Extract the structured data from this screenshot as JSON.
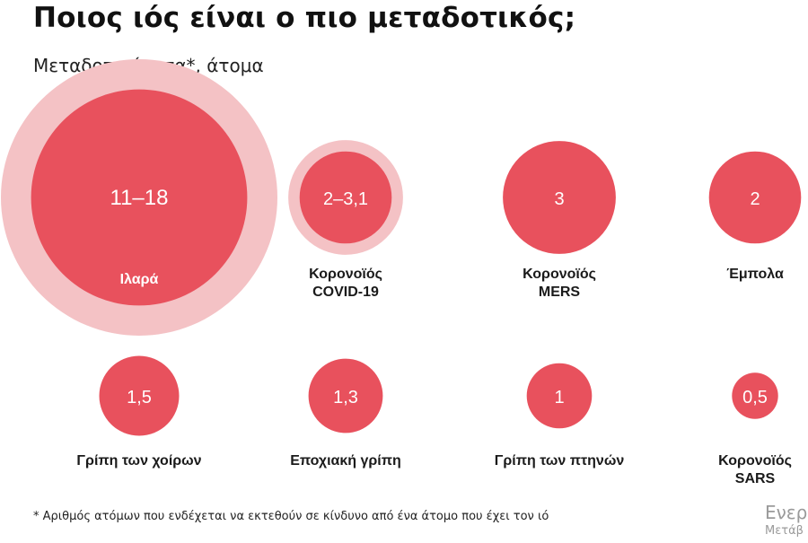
{
  "title": "Ποιος ιός είναι ο πιο μεταδοτικός;",
  "subtitle": "Μεταδοτικότητα*, άτομα",
  "footnote": "* Αριθμός ατόμων που ενδέχεται να εκτεθούν σε κίνδυνο από ένα άτομο που έχει τον ιό",
  "watermark": {
    "line1": "Ενερ",
    "line2": "Μετάβ"
  },
  "colors": {
    "core": "#e8515d",
    "range": "#f4c2c5",
    "label_dark": "#1a1a1a",
    "label_light": "#ffffff"
  },
  "chart_data": {
    "type": "bubble",
    "title": "Ποιος ιός είναι ο πιο μεταδοτικός;",
    "subtitle": "Μεταδοτικότητα*, άτομα",
    "unit": "άτομα",
    "items": [
      {
        "name": "Ιλαρά",
        "label": "11–18",
        "low": 11,
        "high": 18
      },
      {
        "name": "Κορονοϊός COVID-19",
        "label": "2–3,1",
        "low": 2,
        "high": 3.1
      },
      {
        "name": "Κορονοϊός MERS",
        "label": "3",
        "low": 3,
        "high": 3
      },
      {
        "name": "Έμπολα",
        "label": "2",
        "low": 2,
        "high": 2
      },
      {
        "name": "Γρίπη των χοίρων",
        "label": "1,5",
        "low": 1.5,
        "high": 1.5
      },
      {
        "name": "Εποχιακή γρίπη",
        "label": "1,3",
        "low": 1.3,
        "high": 1.3
      },
      {
        "name": "Γρίπη των πτηνών",
        "label": "1",
        "low": 1,
        "high": 1
      },
      {
        "name": "Κορονοϊός SARS",
        "label": "0,5",
        "low": 0.5,
        "high": 0.5
      }
    ]
  }
}
